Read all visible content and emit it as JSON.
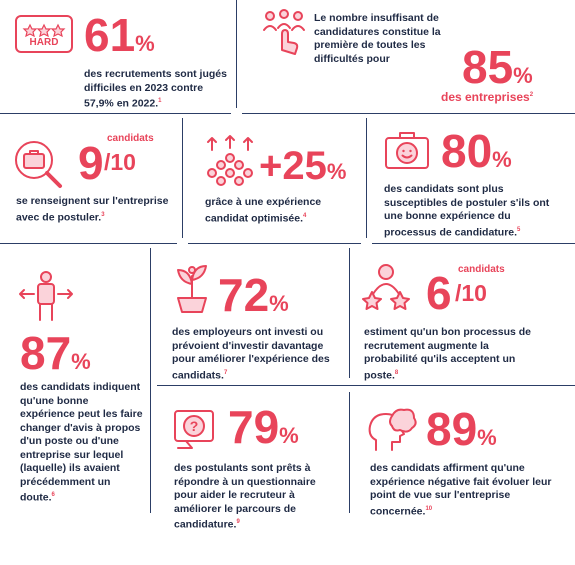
{
  "colors": {
    "accent": "#e8445a",
    "text": "#1f2a44",
    "divider": "#2c3e66"
  },
  "stats": {
    "s1": {
      "value": "61",
      "unit": "%",
      "icon": "hard-badge-icon",
      "badge": "HARD",
      "text": "des recrutements sont jugés difficiles en 2023 contre 57,9% en 2022.",
      "note": "1"
    },
    "s2": {
      "value": "85",
      "unit": "%",
      "icon": "hand-clicking-people-icon",
      "intro": "Le nombre insuffisant de candidatures constitue la première de toutes les difficultés pour",
      "text": "des entreprises",
      "note": "2"
    },
    "s3": {
      "value": "9",
      "fraction": "/10",
      "label": "candidats",
      "icon": "magnifier-briefcase-icon",
      "text": "se renseignent sur l'entreprise avec de postuler.",
      "note": "3"
    },
    "s4": {
      "value": "+25",
      "unit": "%",
      "icon": "crowd-growth-icon",
      "text": "grâce à une expérience candidat optimisée.",
      "note": "4"
    },
    "s5": {
      "value": "80",
      "unit": "%",
      "icon": "smiley-briefcase-icon",
      "text": "des candidats sont plus susceptibles de postuler s'ils ont une bonne expérience du processus de candidature.",
      "note": "5"
    },
    "s6": {
      "value": "87",
      "unit": "%",
      "icon": "person-arrows-icon",
      "text": "des candidats indiquent qu'une bonne expérience peut les faire changer d'avis à propos d'un poste ou d'une entreprise sur lequel (laquelle) ils avaient précédemment un doute.",
      "note": "6"
    },
    "s7": {
      "value": "72",
      "unit": "%",
      "icon": "growing-plant-person-icon",
      "text": "des employeurs ont investi ou prévoient d'investir davantage pour améliorer l'expérience des candidats.",
      "note": "7"
    },
    "s8": {
      "value": "6",
      "fraction": "/10",
      "label": "candidats",
      "icon": "person-stars-icon",
      "text": "estiment qu'un bon processus de recrutement augmente la probabilité qu'ils acceptent un poste.",
      "note": "8"
    },
    "s9": {
      "value": "79",
      "unit": "%",
      "icon": "question-screen-icon",
      "text": "des postulants sont prêts à répondre à un questionnaire pour aider le recruteur à améliorer le parcours de candidature.",
      "note": "9"
    },
    "s10": {
      "value": "89",
      "unit": "%",
      "icon": "thinking-head-icon",
      "text": "des candidats affirment qu'une expérience négative fait évoluer leur point de vue sur l'entreprise concernée.",
      "note": "10"
    }
  }
}
